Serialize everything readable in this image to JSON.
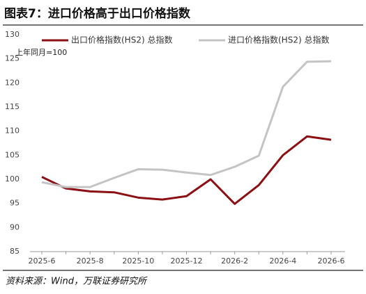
{
  "title": "图表7：进口价格高于出口价格指数",
  "source": "资料来源：Wind，万联证券研究所",
  "chart_data": {
    "type": "line",
    "annotation": "上年同月=100",
    "categories": [
      "2025-6",
      null,
      "2025-8",
      null,
      "2025-10",
      null,
      "2025-12",
      null,
      "2026-2",
      null,
      "2026-4",
      null,
      "2026-6"
    ],
    "series": [
      {
        "name": "出口价格指数(HS2) 总指数",
        "color": "#8b0f13",
        "values": [
          100.5,
          98.1,
          97.5,
          97.3,
          96.2,
          95.8,
          96.5,
          100.0,
          94.9,
          98.8,
          105.0,
          108.9,
          108.2
        ]
      },
      {
        "name": "进口价格指数(HS2) 总指数",
        "color": "#c4c4c4",
        "values": [
          99.4,
          98.4,
          98.4,
          100.3,
          102.1,
          102.0,
          101.4,
          100.9,
          102.6,
          104.9,
          119.2,
          124.4,
          124.5
        ]
      }
    ],
    "ylim": [
      85,
      130
    ],
    "yticks": [
      85,
      90,
      95,
      100,
      105,
      110,
      115,
      120,
      125,
      130
    ]
  }
}
